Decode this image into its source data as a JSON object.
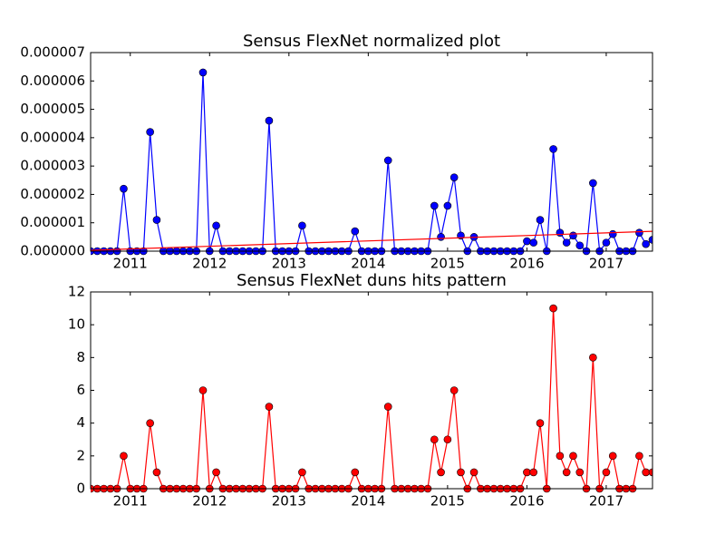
{
  "chart_data": [
    {
      "type": "line",
      "title": "Sensus FlexNet normalized plot",
      "x": [
        "2010-07",
        "2010-08",
        "2010-09",
        "2010-10",
        "2010-11",
        "2010-12",
        "2011-01",
        "2011-02",
        "2011-03",
        "2011-04",
        "2011-05",
        "2011-06",
        "2011-07",
        "2011-08",
        "2011-09",
        "2011-10",
        "2011-11",
        "2011-12",
        "2012-01",
        "2012-02",
        "2012-03",
        "2012-04",
        "2012-05",
        "2012-06",
        "2012-07",
        "2012-08",
        "2012-09",
        "2012-10",
        "2012-11",
        "2012-12",
        "2013-01",
        "2013-02",
        "2013-03",
        "2013-04",
        "2013-05",
        "2013-06",
        "2013-07",
        "2013-08",
        "2013-09",
        "2013-10",
        "2013-11",
        "2013-12",
        "2014-01",
        "2014-02",
        "2014-03",
        "2014-04",
        "2014-05",
        "2014-06",
        "2014-07",
        "2014-08",
        "2014-09",
        "2014-10",
        "2014-11",
        "2014-12",
        "2015-01",
        "2015-02",
        "2015-03",
        "2015-04",
        "2015-05",
        "2015-06",
        "2015-07",
        "2015-08",
        "2015-09",
        "2015-10",
        "2015-11",
        "2015-12",
        "2016-01",
        "2016-02",
        "2016-03",
        "2016-04",
        "2016-05",
        "2016-06",
        "2016-07",
        "2016-08",
        "2016-09",
        "2016-10",
        "2016-11",
        "2016-12",
        "2017-01",
        "2017-02",
        "2017-03",
        "2017-04",
        "2017-05",
        "2017-06",
        "2017-07",
        "2017-08"
      ],
      "series": [
        {
          "color": "#0000ff",
          "values": [
            0,
            0,
            0,
            0,
            0,
            2.2e-06,
            0,
            0,
            0,
            4.2e-06,
            1.1e-06,
            0,
            0,
            0,
            0,
            0,
            0,
            6.3e-06,
            0,
            9e-07,
            0,
            0,
            0,
            0,
            0,
            0,
            0,
            4.6e-06,
            0,
            0,
            0,
            0,
            9e-07,
            0,
            0,
            0,
            0,
            0,
            0,
            0,
            7e-07,
            0,
            0,
            0,
            0,
            3.2e-06,
            0,
            0,
            0,
            0,
            0,
            0,
            1.6e-06,
            5e-07,
            1.6e-06,
            2.6e-06,
            5.5e-07,
            0,
            5e-07,
            0,
            0,
            0,
            0,
            0,
            0,
            0,
            3.5e-07,
            3e-07,
            1.1e-06,
            0,
            3.6e-06,
            6.5e-07,
            3e-07,
            5.5e-07,
            2e-07,
            0,
            2.4e-06,
            0,
            3e-07,
            6e-07,
            0,
            0,
            0,
            6.5e-07,
            2.5e-07,
            4e-07
          ]
        }
      ],
      "trend": {
        "color": "#ff0000",
        "x": [
          "2010-07",
          "2017-08"
        ],
        "values": [
          3e-08,
          7e-07
        ]
      },
      "xlim": [
        "2010-07",
        "2017-08"
      ],
      "xticks": [
        {
          "value": "2011-01",
          "label": "2011"
        },
        {
          "value": "2012-01",
          "label": "2012"
        },
        {
          "value": "2013-01",
          "label": "2013"
        },
        {
          "value": "2014-01",
          "label": "2014"
        },
        {
          "value": "2015-01",
          "label": "2015"
        },
        {
          "value": "2016-01",
          "label": "2016"
        },
        {
          "value": "2017-01",
          "label": "2017"
        }
      ],
      "ylim": [
        0,
        7e-06
      ],
      "yticks": [
        {
          "value": 0,
          "label": "0.000000"
        },
        {
          "value": 1e-06,
          "label": "0.000001"
        },
        {
          "value": 2e-06,
          "label": "0.000002"
        },
        {
          "value": 3e-06,
          "label": "0.000003"
        },
        {
          "value": 4e-06,
          "label": "0.000004"
        },
        {
          "value": 5e-06,
          "label": "0.000005"
        },
        {
          "value": 6e-06,
          "label": "0.000006"
        },
        {
          "value": 7e-06,
          "label": "0.000007"
        }
      ]
    },
    {
      "type": "line",
      "title": "Sensus FlexNet duns hits pattern",
      "x": [
        "2010-07",
        "2010-08",
        "2010-09",
        "2010-10",
        "2010-11",
        "2010-12",
        "2011-01",
        "2011-02",
        "2011-03",
        "2011-04",
        "2011-05",
        "2011-06",
        "2011-07",
        "2011-08",
        "2011-09",
        "2011-10",
        "2011-11",
        "2011-12",
        "2012-01",
        "2012-02",
        "2012-03",
        "2012-04",
        "2012-05",
        "2012-06",
        "2012-07",
        "2012-08",
        "2012-09",
        "2012-10",
        "2012-11",
        "2012-12",
        "2013-01",
        "2013-02",
        "2013-03",
        "2013-04",
        "2013-05",
        "2013-06",
        "2013-07",
        "2013-08",
        "2013-09",
        "2013-10",
        "2013-11",
        "2013-12",
        "2014-01",
        "2014-02",
        "2014-03",
        "2014-04",
        "2014-05",
        "2014-06",
        "2014-07",
        "2014-08",
        "2014-09",
        "2014-10",
        "2014-11",
        "2014-12",
        "2015-01",
        "2015-02",
        "2015-03",
        "2015-04",
        "2015-05",
        "2015-06",
        "2015-07",
        "2015-08",
        "2015-09",
        "2015-10",
        "2015-11",
        "2015-12",
        "2016-01",
        "2016-02",
        "2016-03",
        "2016-04",
        "2016-05",
        "2016-06",
        "2016-07",
        "2016-08",
        "2016-09",
        "2016-10",
        "2016-11",
        "2016-12",
        "2017-01",
        "2017-02",
        "2017-03",
        "2017-04",
        "2017-05",
        "2017-06",
        "2017-07",
        "2017-08"
      ],
      "series": [
        {
          "color": "#ff0000",
          "values": [
            0,
            0,
            0,
            0,
            0,
            2,
            0,
            0,
            0,
            4,
            1,
            0,
            0,
            0,
            0,
            0,
            0,
            6,
            0,
            1,
            0,
            0,
            0,
            0,
            0,
            0,
            0,
            5,
            0,
            0,
            0,
            0,
            1,
            0,
            0,
            0,
            0,
            0,
            0,
            0,
            1,
            0,
            0,
            0,
            0,
            5,
            0,
            0,
            0,
            0,
            0,
            0,
            3,
            1,
            3,
            6,
            1,
            0,
            1,
            0,
            0,
            0,
            0,
            0,
            0,
            0,
            1,
            1,
            4,
            0,
            11,
            2,
            1,
            2,
            1,
            0,
            8,
            0,
            1,
            2,
            0,
            0,
            0,
            2,
            1,
            1
          ]
        }
      ],
      "xlim": [
        "2010-07",
        "2017-08"
      ],
      "xticks": [
        {
          "value": "2011-01",
          "label": "2011"
        },
        {
          "value": "2012-01",
          "label": "2012"
        },
        {
          "value": "2013-01",
          "label": "2013"
        },
        {
          "value": "2014-01",
          "label": "2014"
        },
        {
          "value": "2015-01",
          "label": "2015"
        },
        {
          "value": "2016-01",
          "label": "2016"
        },
        {
          "value": "2017-01",
          "label": "2017"
        }
      ],
      "ylim": [
        0,
        12
      ],
      "yticks": [
        0,
        2,
        4,
        6,
        8,
        10,
        12
      ]
    }
  ]
}
